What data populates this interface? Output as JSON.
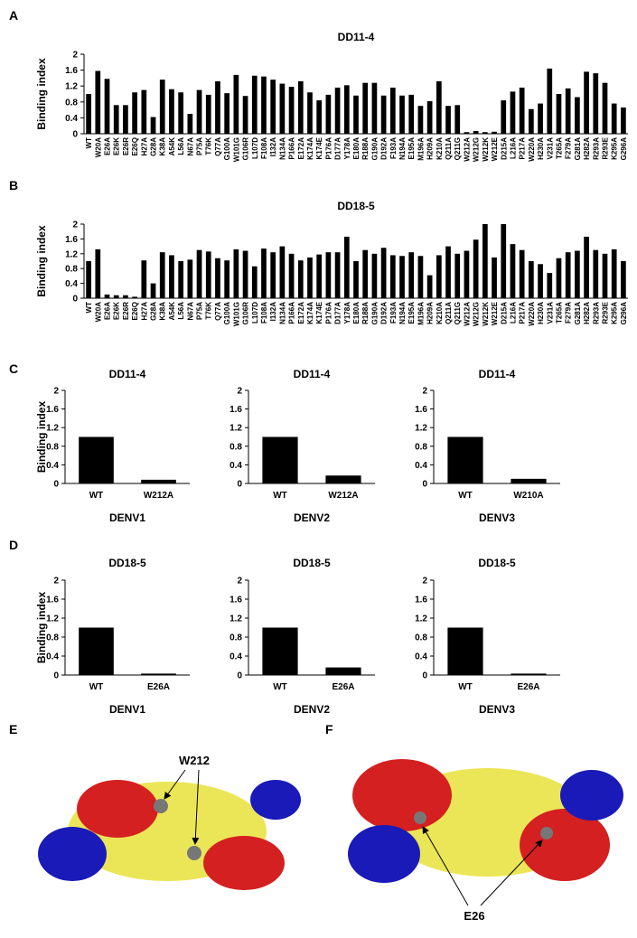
{
  "panel_labels": [
    "A",
    "B",
    "C",
    "D",
    "E",
    "F"
  ],
  "structures": [
    {
      "label": "W212"
    },
    {
      "label": "E26"
    }
  ],
  "chart_data": [
    {
      "type": "bar",
      "title": "DD11-4",
      "y_label": "Binding index",
      "color": "#000000",
      "categories": [
        "WT",
        "W20A",
        "E26A",
        "E26K",
        "E26R",
        "E26Q",
        "H27A",
        "G28A",
        "K38A",
        "A54K",
        "L56A",
        "N67A",
        "P75A",
        "T76K",
        "Q77A",
        "G100A",
        "W101G",
        "G106R",
        "L107D",
        "F108A",
        "I132A",
        "N134A",
        "P166A",
        "E172A",
        "K174A",
        "K174E",
        "P176A",
        "D177A",
        "Y178A",
        "E180A",
        "R188A",
        "G190A",
        "D192A",
        "F193A",
        "N194A",
        "E195A",
        "M196A",
        "H209A",
        "K210A",
        "Q211A",
        "Q211G",
        "W212A",
        "W212G",
        "W212K",
        "W212E",
        "D215A",
        "L216A",
        "P217A",
        "W220A",
        "H230A",
        "V231A",
        "T265A",
        "F279A",
        "G281A",
        "H282A",
        "R293A",
        "R293E",
        "K295A",
        "G296A"
      ],
      "values": [
        1.0,
        1.58,
        1.38,
        0.72,
        0.72,
        1.04,
        1.1,
        0.42,
        1.36,
        1.12,
        1.04,
        0.5,
        1.1,
        0.98,
        1.32,
        1.02,
        1.48,
        0.95,
        1.46,
        1.44,
        1.36,
        1.26,
        1.18,
        1.32,
        1.04,
        0.84,
        0.98,
        1.16,
        1.22,
        0.96,
        1.28,
        1.28,
        0.96,
        1.16,
        0.96,
        0.98,
        0.7,
        0.82,
        1.32,
        0.7,
        0.72,
        0.04,
        0.07,
        0.04,
        0.05,
        0.84,
        1.06,
        1.16,
        0.62,
        0.76,
        1.64,
        1.0,
        1.14,
        0.92,
        1.56,
        1.52,
        1.28,
        0.76,
        0.66
      ],
      "ylim": [
        0,
        2
      ],
      "yticks": [
        0,
        0.4,
        0.8,
        1.2,
        1.6,
        2
      ]
    },
    {
      "type": "bar",
      "title": "DD18-5",
      "y_label": "Binding index",
      "color": "#000000",
      "categories": [
        "WT",
        "W20A",
        "E26A",
        "E26K",
        "E26R",
        "E26Q",
        "H27A",
        "G28A",
        "K38A",
        "A54K",
        "L56A",
        "N67A",
        "P75A",
        "T76K",
        "Q77A",
        "G100A",
        "W101G",
        "G106R",
        "L107D",
        "F108A",
        "I132A",
        "N134A",
        "P166A",
        "E172A",
        "K174A",
        "K174E",
        "P176A",
        "D177A",
        "Y178A",
        "E180A",
        "R188A",
        "G190A",
        "D192A",
        "F193A",
        "N194A",
        "E195A",
        "M196A",
        "H209A",
        "K210A",
        "Q211A",
        "Q211G",
        "W212A",
        "W212G",
        "W212K",
        "W212E",
        "D215A",
        "L216A",
        "P217A",
        "W220A",
        "H230A",
        "V231A",
        "T265A",
        "F279A",
        "G281A",
        "H282A",
        "R293A",
        "R293E",
        "K295A",
        "G296A"
      ],
      "values": [
        1.0,
        1.32,
        0.1,
        0.08,
        0.08,
        0.04,
        1.02,
        0.4,
        1.24,
        1.16,
        1.0,
        1.04,
        1.3,
        1.26,
        1.08,
        1.02,
        1.32,
        1.28,
        0.86,
        1.34,
        1.24,
        1.4,
        1.2,
        1.02,
        1.1,
        1.18,
        1.24,
        1.24,
        1.66,
        1.0,
        1.3,
        1.2,
        1.36,
        1.16,
        1.14,
        1.24,
        1.14,
        0.62,
        1.16,
        1.4,
        1.2,
        1.28,
        1.58,
        2.0,
        1.1,
        2.0,
        1.46,
        1.3,
        1.0,
        0.92,
        0.68,
        1.08,
        1.24,
        1.28,
        1.66,
        1.3,
        1.2,
        1.32,
        1.0
      ],
      "ylim": [
        0,
        2
      ],
      "yticks": [
        0,
        0.4,
        0.8,
        1.2,
        1.6,
        2
      ]
    },
    {
      "type": "bar",
      "title": "DD11-4",
      "y_label": "Binding index",
      "x_label": "DENV1",
      "color": "#000000",
      "categories": [
        "WT",
        "W212A"
      ],
      "values": [
        1.0,
        0.08
      ],
      "ylim": [
        0,
        2
      ],
      "yticks": [
        0,
        0.4,
        0.8,
        1.2,
        1.6,
        2
      ]
    },
    {
      "type": "bar",
      "title": "DD11-4",
      "x_label": "DENV2",
      "color": "#000000",
      "categories": [
        "WT",
        "W212A"
      ],
      "values": [
        1.0,
        0.17
      ],
      "ylim": [
        0,
        2
      ],
      "yticks": [
        0,
        0.4,
        0.8,
        1.2,
        1.6,
        2
      ]
    },
    {
      "type": "bar",
      "title": "DD11-4",
      "x_label": "DENV3",
      "color": "#000000",
      "categories": [
        "WT",
        "W210A"
      ],
      "values": [
        1.0,
        0.1
      ],
      "ylim": [
        0,
        2
      ],
      "yticks": [
        0,
        0.4,
        0.8,
        1.2,
        1.6,
        2
      ]
    },
    {
      "type": "bar",
      "title": "DD18-5",
      "y_label": "Binding index",
      "x_label": "DENV1",
      "color": "#000000",
      "categories": [
        "WT",
        "E26A"
      ],
      "values": [
        1.0,
        0.03
      ],
      "ylim": [
        0,
        2
      ],
      "yticks": [
        0,
        0.4,
        0.8,
        1.2,
        1.6,
        2
      ]
    },
    {
      "type": "bar",
      "title": "DD18-5",
      "x_label": "DENV2",
      "color": "#000000",
      "categories": [
        "WT",
        "E26A"
      ],
      "values": [
        1.0,
        0.16
      ],
      "ylim": [
        0,
        2
      ],
      "yticks": [
        0,
        0.4,
        0.8,
        1.2,
        1.6,
        2
      ]
    },
    {
      "type": "bar",
      "title": "DD18-5",
      "x_label": "DENV3",
      "color": "#000000",
      "categories": [
        "WT",
        "E26A"
      ],
      "values": [
        1.0,
        0.03
      ],
      "ylim": [
        0,
        2
      ],
      "yticks": [
        0,
        0.4,
        0.8,
        1.2,
        1.6,
        2
      ]
    }
  ]
}
